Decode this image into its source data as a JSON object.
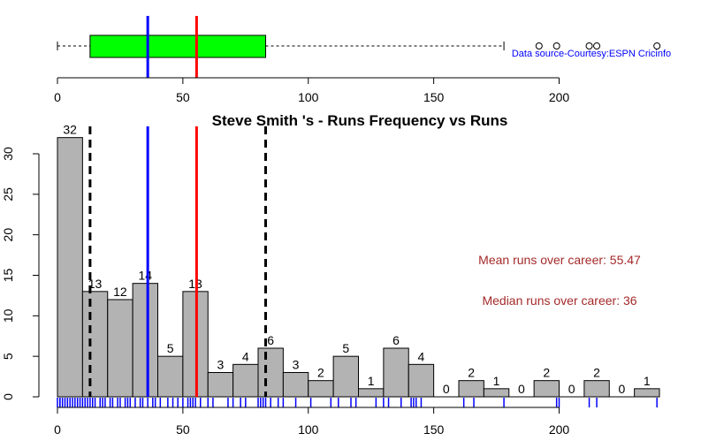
{
  "chart_data": [
    {
      "type": "boxplot",
      "xlim": [
        0,
        240
      ],
      "x_ticks": [
        0,
        50,
        100,
        150,
        200
      ],
      "box": {
        "whisker_low": 0,
        "q1": 13,
        "median": 36,
        "q3": 83,
        "whisker_high": 178
      },
      "box_color": "#00ff00",
      "outliers": [
        192,
        199,
        212,
        215,
        239
      ],
      "mean_line": 55.47,
      "median_line": 36,
      "mean_color": "#ff0000",
      "median_color": "#0000ff",
      "source_text": "Data source-Courtesy:ESPN Cricinfo",
      "source_color": "#0000ff"
    },
    {
      "type": "bar",
      "title": "Steve Smith 's  - Runs Frequency vs Runs",
      "xlabel": "",
      "ylabel": "",
      "bin_width": 10,
      "bin_starts": [
        0,
        10,
        20,
        30,
        40,
        50,
        60,
        70,
        80,
        90,
        100,
        110,
        120,
        130,
        140,
        150,
        160,
        170,
        180,
        190,
        200,
        210,
        220,
        230
      ],
      "values": [
        32,
        13,
        12,
        14,
        5,
        13,
        3,
        4,
        6,
        3,
        2,
        5,
        1,
        6,
        4,
        0,
        2,
        1,
        0,
        2,
        0,
        2,
        0,
        1
      ],
      "bar_color": "#b3b3b3",
      "xlim": [
        0,
        240
      ],
      "ylim": [
        0,
        32
      ],
      "x_ticks": [
        0,
        50,
        100,
        150,
        200
      ],
      "y_ticks": [
        0,
        5,
        10,
        15,
        20,
        25,
        30
      ],
      "mean": 55.47,
      "median": 36,
      "quartile_lines": [
        13,
        83
      ],
      "mean_color": "#ff0000",
      "median_color": "#0000ff",
      "quartile_color": "#000000",
      "annotations": {
        "mean_text": "Mean runs over career: 55.47",
        "median_text": "Median runs over career: 36",
        "color": "#a52a2a"
      },
      "rug": [
        0,
        1,
        1,
        2,
        3,
        4,
        5,
        6,
        7,
        8,
        9,
        10,
        11,
        12,
        13,
        14,
        15,
        17,
        18,
        19,
        21,
        22,
        24,
        25,
        27,
        28,
        29,
        31,
        33,
        34,
        36,
        38,
        39,
        41,
        44,
        46,
        48,
        50,
        52,
        53,
        54,
        55,
        57,
        60,
        62,
        68,
        70,
        73,
        75,
        80,
        81,
        82,
        83,
        85,
        88,
        90,
        95,
        101,
        109,
        112,
        117,
        119,
        127,
        130,
        132,
        137,
        141,
        142,
        143,
        145,
        162,
        166,
        178,
        199,
        200,
        212,
        215,
        239
      ],
      "rug_color": "#0000ff"
    }
  ]
}
